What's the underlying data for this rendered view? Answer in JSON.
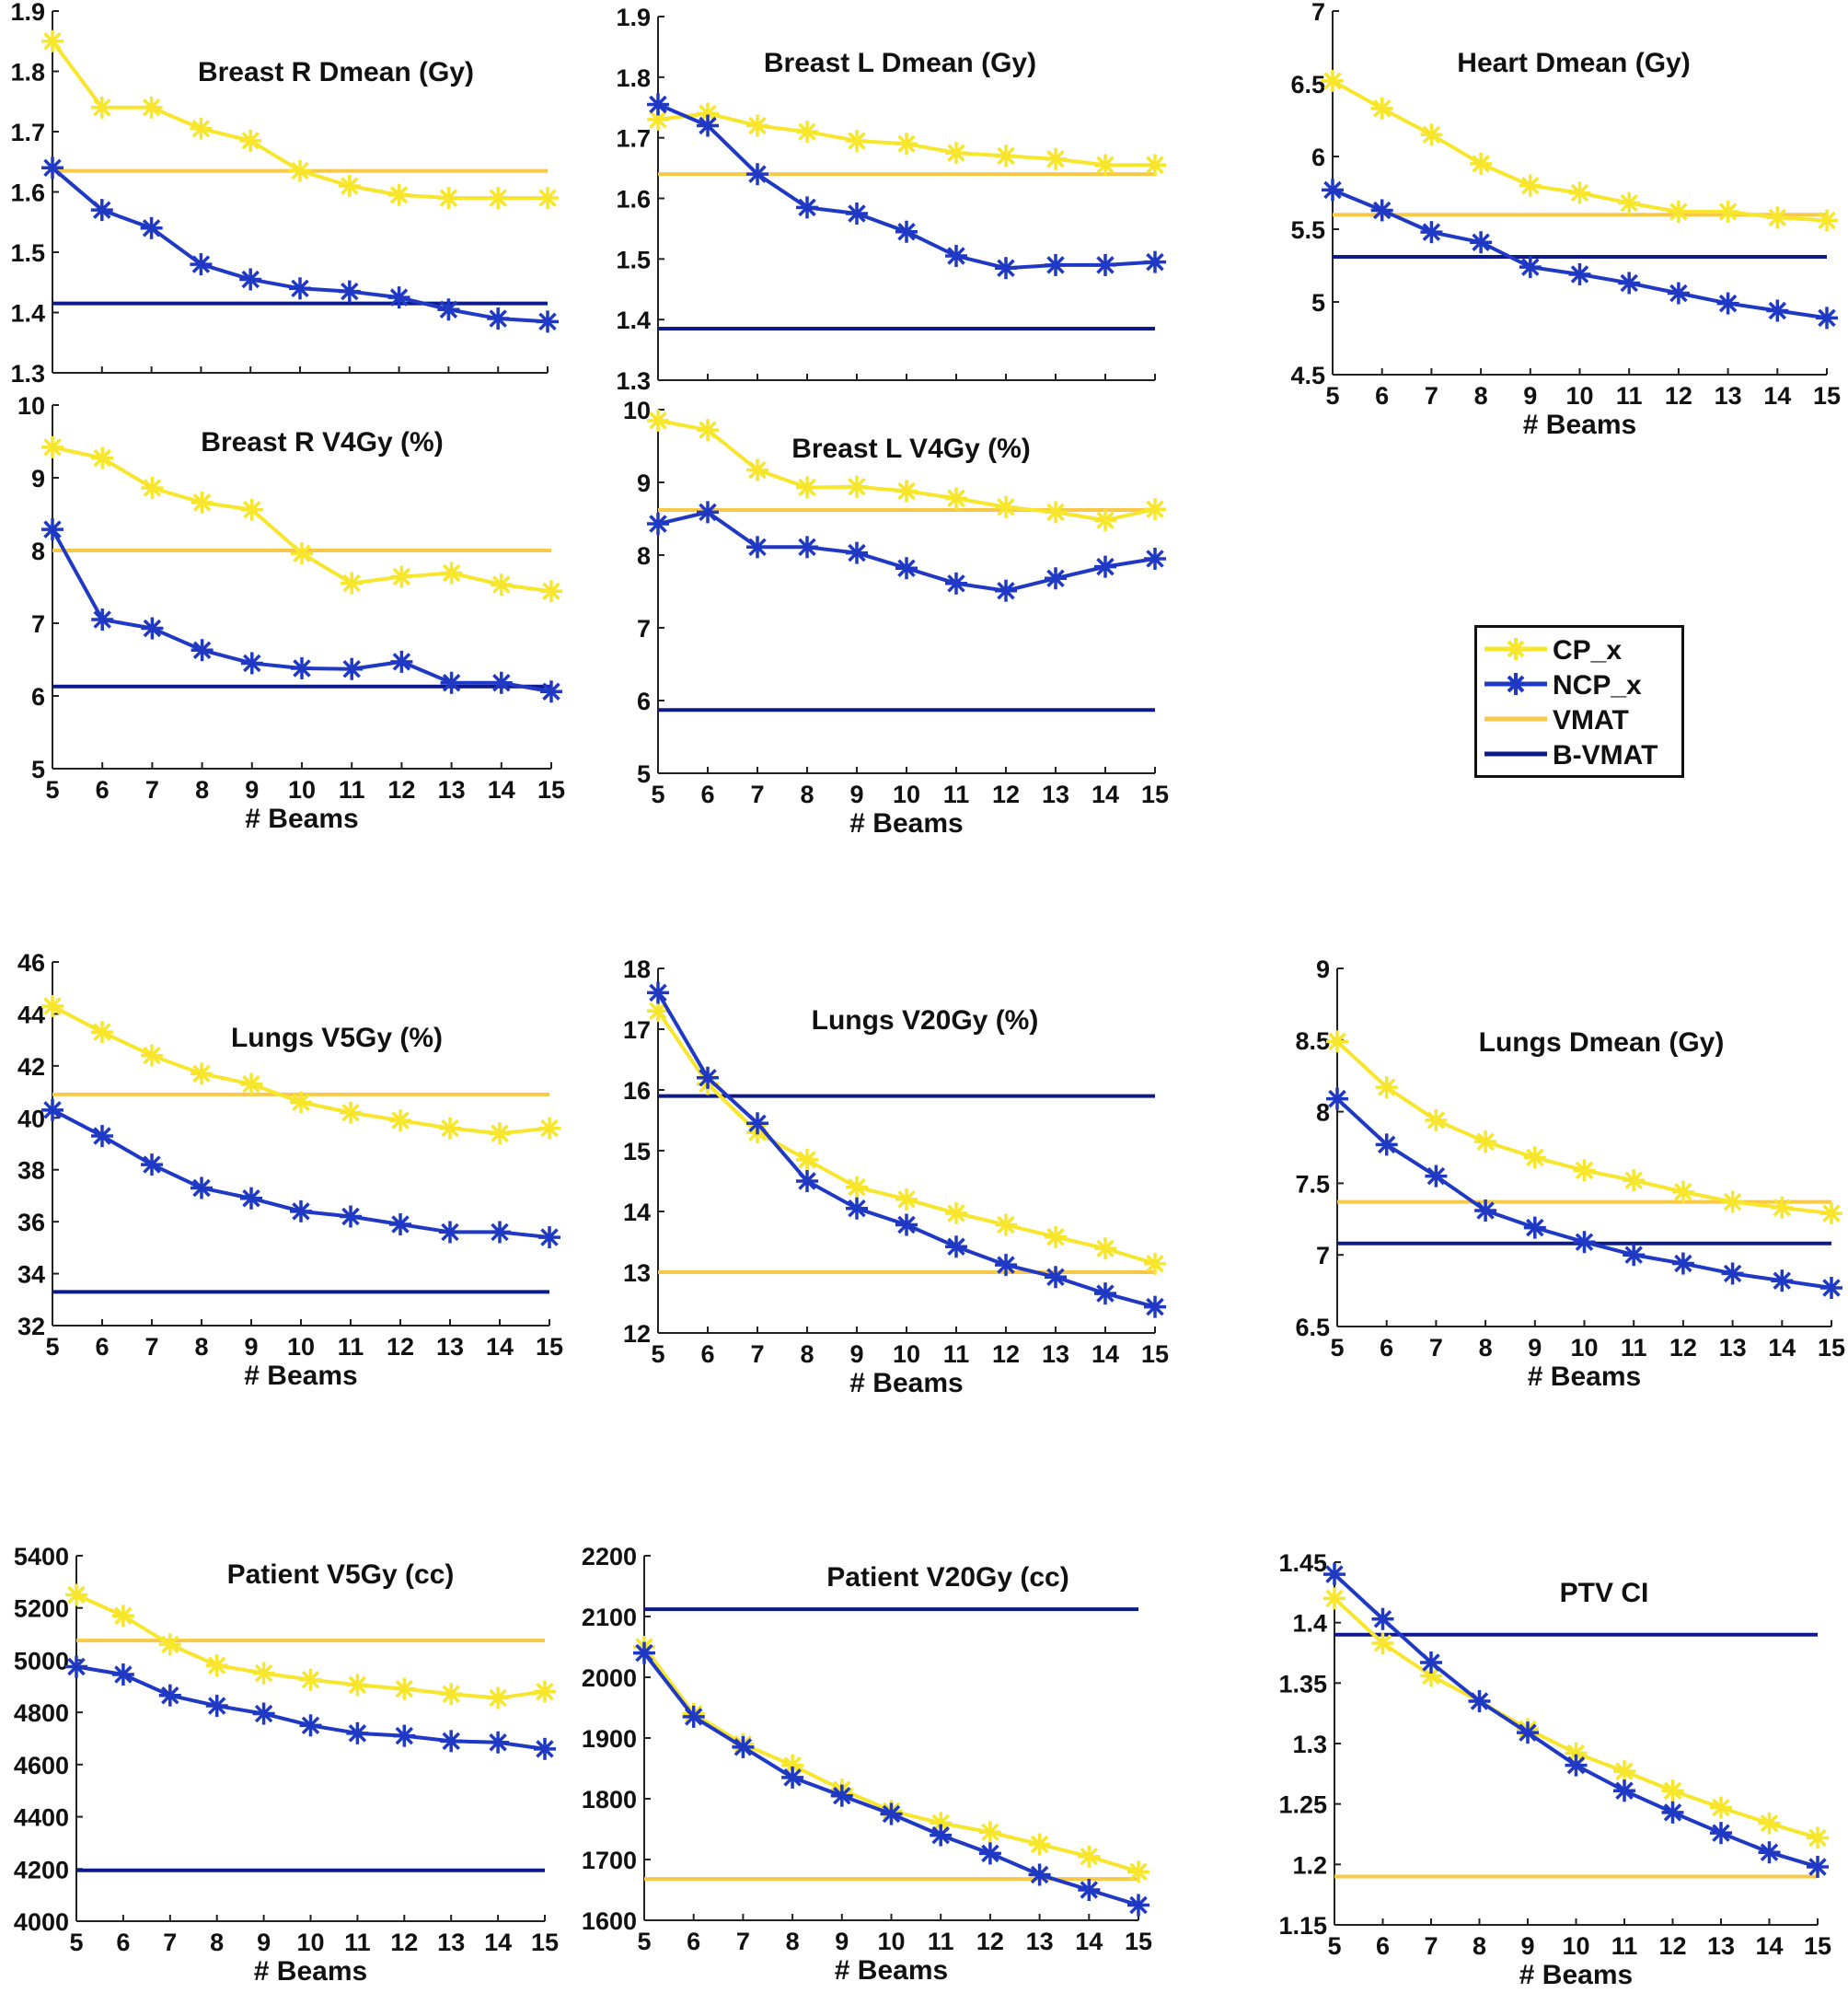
{
  "colors": {
    "cp": "#f7e62c",
    "ncp": "#1f39c4",
    "vmat": "#f9c846",
    "bvmat": "#0d1a8c"
  },
  "legend": {
    "items": [
      {
        "name": "cp",
        "label": "CP_x",
        "kind": "marker-line"
      },
      {
        "name": "ncp",
        "label": "NCP_x",
        "kind": "marker-line"
      },
      {
        "name": "vmat",
        "label": "VMAT",
        "kind": "line"
      },
      {
        "name": "bvmat",
        "label": "B-VMAT",
        "kind": "line"
      }
    ]
  },
  "chart_data": [
    {
      "id": "breast-r-dmean",
      "type": "line",
      "title": "Breast R Dmean (Gy)",
      "xlabel": "",
      "x": [
        5,
        6,
        7,
        8,
        9,
        10,
        11,
        12,
        13,
        14,
        15
      ],
      "xlim": [
        5,
        15
      ],
      "ylim": [
        1.3,
        1.9
      ],
      "yticks": [
        1.3,
        1.4,
        1.5,
        1.6,
        1.7,
        1.8,
        1.9
      ],
      "ytick_labels": [
        "1.3",
        "1.4",
        "1.5",
        "1.6",
        "1.7",
        "1.8",
        "1.9"
      ],
      "show_xticks": false,
      "series": [
        {
          "name": "CP_x",
          "values": [
            1.85,
            1.74,
            1.74,
            1.705,
            1.685,
            1.635,
            1.61,
            1.595,
            1.59,
            1.59,
            1.59
          ]
        },
        {
          "name": "NCP_x",
          "values": [
            1.64,
            1.57,
            1.54,
            1.48,
            1.455,
            1.44,
            1.435,
            1.425,
            1.405,
            1.39,
            1.385
          ]
        }
      ],
      "hlines": [
        {
          "name": "VMAT",
          "value": 1.635
        },
        {
          "name": "B-VMAT",
          "value": 1.415
        }
      ]
    },
    {
      "id": "breast-l-dmean",
      "type": "line",
      "title": "Breast L Dmean (Gy)",
      "xlabel": "",
      "x": [
        5,
        6,
        7,
        8,
        9,
        10,
        11,
        12,
        13,
        14,
        15
      ],
      "xlim": [
        5,
        15
      ],
      "ylim": [
        1.3,
        1.9
      ],
      "yticks": [
        1.3,
        1.4,
        1.5,
        1.6,
        1.7,
        1.8,
        1.9
      ],
      "ytick_labels": [
        "1.3",
        "1.4",
        "1.5",
        "1.6",
        "1.7",
        "1.8",
        "1.9"
      ],
      "show_xticks": false,
      "series": [
        {
          "name": "CP_x",
          "values": [
            1.73,
            1.74,
            1.72,
            1.71,
            1.695,
            1.69,
            1.675,
            1.67,
            1.665,
            1.655,
            1.655
          ]
        },
        {
          "name": "NCP_x",
          "values": [
            1.755,
            1.72,
            1.64,
            1.585,
            1.575,
            1.545,
            1.505,
            1.485,
            1.49,
            1.49,
            1.495
          ]
        }
      ],
      "hlines": [
        {
          "name": "VMAT",
          "value": 1.64
        },
        {
          "name": "B-VMAT",
          "value": 1.385
        }
      ]
    },
    {
      "id": "heart-dmean",
      "type": "line",
      "title": "Heart Dmean (Gy)",
      "xlabel": "# Beams",
      "x": [
        5,
        6,
        7,
        8,
        9,
        10,
        11,
        12,
        13,
        14,
        15
      ],
      "xlim": [
        5,
        15
      ],
      "ylim": [
        4.5,
        7
      ],
      "yticks": [
        4.5,
        5,
        5.5,
        6,
        6.5,
        7
      ],
      "ytick_labels": [
        "4.5",
        "5",
        "5.5",
        "6",
        "6.5",
        "7"
      ],
      "show_xticks": true,
      "series": [
        {
          "name": "CP_x",
          "values": [
            6.52,
            6.33,
            6.15,
            5.95,
            5.8,
            5.75,
            5.68,
            5.62,
            5.62,
            5.58,
            5.56
          ]
        },
        {
          "name": "NCP_x",
          "values": [
            5.77,
            5.63,
            5.48,
            5.41,
            5.24,
            5.19,
            5.13,
            5.06,
            4.99,
            4.94,
            4.89
          ]
        }
      ],
      "hlines": [
        {
          "name": "VMAT",
          "value": 5.6
        },
        {
          "name": "B-VMAT",
          "value": 5.31
        }
      ]
    },
    {
      "id": "breast-r-v4gy",
      "type": "line",
      "title": "Breast R V4Gy (%)",
      "xlabel": "# Beams",
      "x": [
        5,
        6,
        7,
        8,
        9,
        10,
        11,
        12,
        13,
        14,
        15
      ],
      "xlim": [
        5,
        15
      ],
      "ylim": [
        5,
        10
      ],
      "yticks": [
        5,
        6,
        7,
        8,
        9,
        10
      ],
      "ytick_labels": [
        "5",
        "6",
        "7",
        "8",
        "9",
        "10"
      ],
      "show_xticks": true,
      "series": [
        {
          "name": "CP_x",
          "values": [
            9.42,
            9.27,
            8.86,
            8.66,
            8.56,
            7.96,
            7.55,
            7.64,
            7.69,
            7.53,
            7.44
          ]
        },
        {
          "name": "NCP_x",
          "values": [
            8.29,
            7.05,
            6.93,
            6.63,
            6.45,
            6.38,
            6.37,
            6.47,
            6.18,
            6.18,
            6.06
          ]
        }
      ],
      "hlines": [
        {
          "name": "VMAT",
          "value": 8.0
        },
        {
          "name": "B-VMAT",
          "value": 6.13
        }
      ]
    },
    {
      "id": "breast-l-v4gy",
      "type": "line",
      "title": "Breast L V4Gy (%)",
      "xlabel": "# Beams",
      "x": [
        5,
        6,
        7,
        8,
        9,
        10,
        11,
        12,
        13,
        14,
        15
      ],
      "xlim": [
        5,
        15
      ],
      "ylim": [
        5,
        10
      ],
      "yticks": [
        5,
        6,
        7,
        8,
        9,
        10
      ],
      "ytick_labels": [
        "5",
        "6",
        "7",
        "8",
        "9",
        "10"
      ],
      "show_xticks": true,
      "series": [
        {
          "name": "CP_x",
          "values": [
            9.85,
            9.72,
            9.17,
            8.93,
            8.94,
            8.88,
            8.78,
            8.66,
            8.59,
            8.48,
            8.63
          ]
        },
        {
          "name": "NCP_x",
          "values": [
            8.43,
            8.59,
            8.11,
            8.11,
            8.03,
            7.82,
            7.61,
            7.51,
            7.68,
            7.84,
            7.95
          ]
        }
      ],
      "hlines": [
        {
          "name": "VMAT",
          "value": 8.62
        },
        {
          "name": "B-VMAT",
          "value": 5.87
        }
      ]
    },
    {
      "id": "lungs-v5gy",
      "type": "line",
      "title": "Lungs V5Gy (%)",
      "xlabel": "# Beams",
      "x": [
        5,
        6,
        7,
        8,
        9,
        10,
        11,
        12,
        13,
        14,
        15
      ],
      "xlim": [
        5,
        15
      ],
      "ylim": [
        32,
        46
      ],
      "yticks": [
        32,
        34,
        36,
        38,
        40,
        42,
        44,
        46
      ],
      "ytick_labels": [
        "32",
        "34",
        "36",
        "38",
        "40",
        "42",
        "44",
        "46"
      ],
      "show_xticks": true,
      "series": [
        {
          "name": "CP_x",
          "values": [
            44.3,
            43.3,
            42.4,
            41.7,
            41.3,
            40.6,
            40.2,
            39.9,
            39.6,
            39.4,
            39.6
          ]
        },
        {
          "name": "NCP_x",
          "values": [
            40.3,
            39.3,
            38.2,
            37.3,
            36.9,
            36.4,
            36.2,
            35.9,
            35.6,
            35.6,
            35.4
          ]
        }
      ],
      "hlines": [
        {
          "name": "VMAT",
          "value": 40.9
        },
        {
          "name": "B-VMAT",
          "value": 33.3
        }
      ]
    },
    {
      "id": "lungs-v20gy",
      "type": "line",
      "title": "Lungs V20Gy (%)",
      "xlabel": "# Beams",
      "x": [
        5,
        6,
        7,
        8,
        9,
        10,
        11,
        12,
        13,
        14,
        15
      ],
      "xlim": [
        5,
        15
      ],
      "ylim": [
        12,
        18
      ],
      "yticks": [
        12,
        13,
        14,
        15,
        16,
        17,
        18
      ],
      "ytick_labels": [
        "12",
        "13",
        "14",
        "15",
        "16",
        "17",
        "18"
      ],
      "show_xticks": true,
      "series": [
        {
          "name": "CP_x",
          "values": [
            17.3,
            16.1,
            15.3,
            14.85,
            14.4,
            14.2,
            13.97,
            13.78,
            13.58,
            13.39,
            13.14
          ]
        },
        {
          "name": "NCP_x",
          "values": [
            17.6,
            16.2,
            15.45,
            14.5,
            14.05,
            13.78,
            13.42,
            13.12,
            12.92,
            12.65,
            12.43
          ]
        }
      ],
      "hlines": [
        {
          "name": "VMAT",
          "value": 13.0
        },
        {
          "name": "B-VMAT",
          "value": 15.9
        }
      ]
    },
    {
      "id": "lungs-dmean",
      "type": "line",
      "title": "Lungs Dmean (Gy)",
      "xlabel": "# Beams",
      "x": [
        5,
        6,
        7,
        8,
        9,
        10,
        11,
        12,
        13,
        14,
        15
      ],
      "xlim": [
        5,
        15
      ],
      "ylim": [
        6.5,
        9
      ],
      "yticks": [
        6.5,
        7,
        7.5,
        8,
        8.5,
        9
      ],
      "ytick_labels": [
        "6.5",
        "7",
        "7.5",
        "8",
        "8.5",
        "9"
      ],
      "show_xticks": true,
      "series": [
        {
          "name": "CP_x",
          "values": [
            8.49,
            8.17,
            7.94,
            7.79,
            7.68,
            7.59,
            7.52,
            7.44,
            7.37,
            7.33,
            7.29
          ]
        },
        {
          "name": "NCP_x",
          "values": [
            8.09,
            7.77,
            7.55,
            7.31,
            7.19,
            7.09,
            7.0,
            6.94,
            6.87,
            6.82,
            6.77
          ]
        }
      ],
      "hlines": [
        {
          "name": "VMAT",
          "value": 7.37
        },
        {
          "name": "B-VMAT",
          "value": 7.08
        }
      ]
    },
    {
      "id": "patient-v5gy",
      "type": "line",
      "title": "Patient V5Gy (cc)",
      "xlabel": "# Beams",
      "x": [
        5,
        6,
        7,
        8,
        9,
        10,
        11,
        12,
        13,
        14,
        15
      ],
      "xlim": [
        5,
        15
      ],
      "ylim": [
        4000,
        5400
      ],
      "yticks": [
        4000,
        4200,
        4400,
        4600,
        4800,
        5000,
        5200,
        5400
      ],
      "ytick_labels": [
        "4000",
        "4200",
        "4400",
        "4600",
        "4800",
        "5000",
        "5200",
        "5400"
      ],
      "show_xticks": true,
      "series": [
        {
          "name": "CP_x",
          "values": [
            5250,
            5170,
            5060,
            4980,
            4950,
            4925,
            4905,
            4890,
            4870,
            4855,
            4880
          ]
        },
        {
          "name": "NCP_x",
          "values": [
            4975,
            4945,
            4865,
            4825,
            4795,
            4750,
            4720,
            4710,
            4690,
            4685,
            4660
          ]
        }
      ],
      "hlines": [
        {
          "name": "VMAT",
          "value": 5075
        },
        {
          "name": "B-VMAT",
          "value": 4195
        }
      ]
    },
    {
      "id": "patient-v20gy",
      "type": "line",
      "title": "Patient V20Gy (cc)",
      "xlabel": "# Beams",
      "x": [
        5,
        6,
        7,
        8,
        9,
        10,
        11,
        12,
        13,
        14,
        15
      ],
      "xlim": [
        5,
        15
      ],
      "ylim": [
        1600,
        2200
      ],
      "yticks": [
        1600,
        1700,
        1800,
        1900,
        2000,
        2100,
        2200
      ],
      "ytick_labels": [
        "1600",
        "1700",
        "1800",
        "1900",
        "2000",
        "2100",
        "2200"
      ],
      "show_xticks": true,
      "series": [
        {
          "name": "CP_x",
          "values": [
            2050,
            1940,
            1890,
            1855,
            1815,
            1780,
            1760,
            1745,
            1725,
            1705,
            1680
          ]
        },
        {
          "name": "NCP_x",
          "values": [
            2040,
            1935,
            1885,
            1835,
            1805,
            1775,
            1740,
            1710,
            1675,
            1650,
            1625
          ]
        }
      ],
      "hlines": [
        {
          "name": "VMAT",
          "value": 1668
        },
        {
          "name": "B-VMAT",
          "value": 2112
        }
      ]
    },
    {
      "id": "ptv-ci",
      "type": "line",
      "title": "PTV CI",
      "xlabel": "# Beams",
      "x": [
        5,
        6,
        7,
        8,
        9,
        10,
        11,
        12,
        13,
        14,
        15
      ],
      "xlim": [
        5,
        15
      ],
      "ylim": [
        1.15,
        1.45
      ],
      "yticks": [
        1.15,
        1.2,
        1.25,
        1.3,
        1.35,
        1.4,
        1.45
      ],
      "ytick_labels": [
        "1.15",
        "1.2",
        "1.25",
        "1.3",
        "1.35",
        "1.4",
        "1.45"
      ],
      "show_xticks": true,
      "series": [
        {
          "name": "CP_x",
          "values": [
            1.42,
            1.383,
            1.356,
            1.335,
            1.312,
            1.292,
            1.277,
            1.261,
            1.247,
            1.234,
            1.222
          ]
        },
        {
          "name": "NCP_x",
          "values": [
            1.44,
            1.403,
            1.367,
            1.335,
            1.309,
            1.282,
            1.261,
            1.243,
            1.226,
            1.21,
            1.198
          ]
        }
      ],
      "hlines": [
        {
          "name": "VMAT",
          "value": 1.19
        },
        {
          "name": "B-VMAT",
          "value": 1.39
        }
      ]
    }
  ]
}
